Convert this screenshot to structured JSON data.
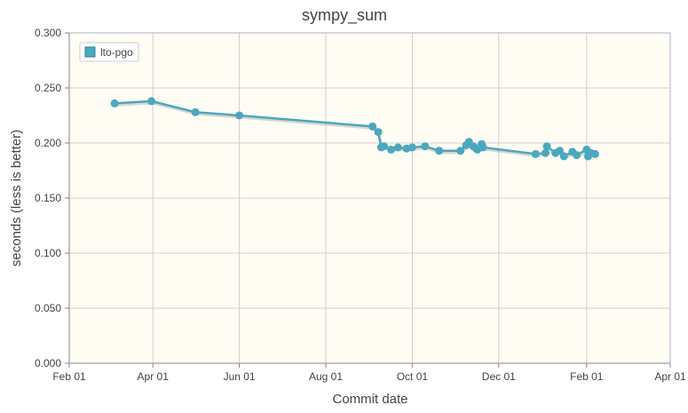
{
  "chart_data": {
    "type": "line",
    "title": "sympy_sum",
    "xlabel": "Commit date",
    "ylabel": "seconds (less is better)",
    "x_tick_labels": [
      "Feb 01",
      "Apr 01",
      "Jun 01",
      "Aug 01",
      "Oct 01",
      "Dec 01",
      "Feb 01",
      "Apr 01"
    ],
    "x_tick_dates": [
      "2022-02-01",
      "2022-04-01",
      "2022-06-01",
      "2022-08-01",
      "2022-10-01",
      "2022-12-01",
      "2023-02-01",
      "2023-04-01"
    ],
    "xlim": [
      "2022-02-01",
      "2023-04-01"
    ],
    "y_tick_labels": [
      "0.000",
      "0.050",
      "0.100",
      "0.150",
      "0.200",
      "0.250",
      "0.300"
    ],
    "y_ticks": [
      0,
      0.05,
      0.1,
      0.15,
      0.2,
      0.25,
      0.3
    ],
    "ylim": [
      0,
      0.3
    ],
    "grid": true,
    "legend_position": "top-left",
    "plot_background": "#fffcf3",
    "series": [
      {
        "name": "lto-pgo",
        "color": "#4ba8be",
        "points": [
          {
            "x": "2022-03-05",
            "y": 0.236
          },
          {
            "x": "2022-03-31",
            "y": 0.238
          },
          {
            "x": "2022-05-01",
            "y": 0.228
          },
          {
            "x": "2022-06-01",
            "y": 0.225
          },
          {
            "x": "2022-09-03",
            "y": 0.215
          },
          {
            "x": "2022-09-07",
            "y": 0.21
          },
          {
            "x": "2022-09-09",
            "y": 0.196
          },
          {
            "x": "2022-09-11",
            "y": 0.197
          },
          {
            "x": "2022-09-16",
            "y": 0.194
          },
          {
            "x": "2022-09-21",
            "y": 0.196
          },
          {
            "x": "2022-09-27",
            "y": 0.195
          },
          {
            "x": "2022-10-01",
            "y": 0.196
          },
          {
            "x": "2022-10-10",
            "y": 0.197
          },
          {
            "x": "2022-10-20",
            "y": 0.193
          },
          {
            "x": "2022-11-04",
            "y": 0.193
          },
          {
            "x": "2022-11-08",
            "y": 0.198
          },
          {
            "x": "2022-11-10",
            "y": 0.201
          },
          {
            "x": "2022-11-13",
            "y": 0.197
          },
          {
            "x": "2022-11-15",
            "y": 0.195
          },
          {
            "x": "2022-11-16",
            "y": 0.194
          },
          {
            "x": "2022-11-19",
            "y": 0.199
          },
          {
            "x": "2022-11-20",
            "y": 0.196
          },
          {
            "x": "2022-12-27",
            "y": 0.19
          },
          {
            "x": "2023-01-03",
            "y": 0.191
          },
          {
            "x": "2023-01-04",
            "y": 0.197
          },
          {
            "x": "2023-01-10",
            "y": 0.191
          },
          {
            "x": "2023-01-13",
            "y": 0.193
          },
          {
            "x": "2023-01-16",
            "y": 0.188
          },
          {
            "x": "2023-01-22",
            "y": 0.192
          },
          {
            "x": "2023-01-25",
            "y": 0.189
          },
          {
            "x": "2023-02-01",
            "y": 0.194
          },
          {
            "x": "2023-02-02",
            "y": 0.188
          },
          {
            "x": "2023-02-04",
            "y": 0.191
          },
          {
            "x": "2023-02-07",
            "y": 0.19
          }
        ]
      }
    ]
  }
}
